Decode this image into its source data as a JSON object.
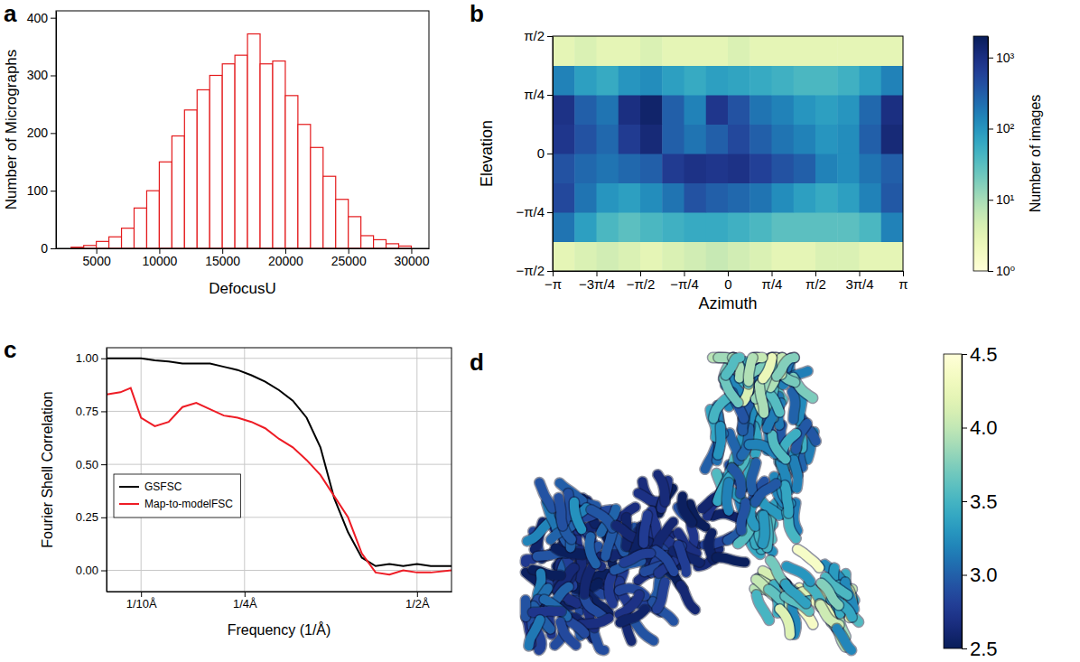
{
  "chart_data": [
    {
      "panel_label": "a",
      "type": "histogram",
      "x_label": "DefocusU",
      "y_label": "Number of Micrographs",
      "bins": [
        3000,
        4000,
        5000,
        6000,
        7000,
        8000,
        9000,
        10000,
        11000,
        12000,
        13000,
        14000,
        15000,
        16000,
        17000,
        18000,
        19000,
        20000,
        21000,
        22000,
        23000,
        24000,
        25000,
        26000,
        27000,
        28000,
        29000,
        30000
      ],
      "counts": [
        2,
        5,
        12,
        20,
        35,
        70,
        100,
        150,
        195,
        240,
        275,
        300,
        320,
        335,
        372,
        320,
        325,
        265,
        215,
        175,
        125,
        85,
        55,
        22,
        15,
        8,
        4
      ],
      "color": "#e41a1c",
      "xlim": [
        1800,
        31400
      ],
      "ylim": [
        0,
        412
      ],
      "xticks": [
        5000,
        10000,
        15000,
        20000,
        25000,
        30000
      ],
      "yticks": [
        0,
        100,
        200,
        300,
        400
      ]
    },
    {
      "panel_label": "b",
      "type": "heatmap",
      "x_label": "Azimuth",
      "y_label": "Elevation",
      "colorbar_label": "Number of images",
      "x_bins": [
        -3.14159,
        -2.74889,
        -2.35619,
        -1.9635,
        -1.5708,
        -1.1781,
        -0.7854,
        -0.3927,
        0,
        0.3927,
        0.7854,
        1.1781,
        1.5708,
        1.9635,
        2.35619,
        2.74889,
        3.14159
      ],
      "y_bins": [
        -1.5708,
        -1.1781,
        -0.7854,
        -0.3927,
        0,
        0.3927,
        0.7854,
        1.1781,
        1.5708
      ],
      "counts": [
        [
          3,
          4,
          5,
          4,
          3,
          4,
          5,
          6,
          5,
          4,
          3,
          3,
          4,
          4,
          3,
          3
        ],
        [
          200,
          80,
          40,
          30,
          40,
          50,
          60,
          60,
          50,
          40,
          30,
          30,
          30,
          30,
          40,
          150
        ],
        [
          500,
          200,
          100,
          80,
          120,
          200,
          400,
          300,
          250,
          200,
          120,
          80,
          60,
          80,
          150,
          350
        ],
        [
          400,
          250,
          200,
          250,
          300,
          700,
          900,
          800,
          900,
          600,
          400,
          300,
          150,
          120,
          200,
          300
        ],
        [
          800,
          400,
          250,
          700,
          1200,
          300,
          200,
          300,
          500,
          300,
          200,
          150,
          100,
          120,
          300,
          1200
        ],
        [
          900,
          300,
          200,
          1000,
          1500,
          300,
          150,
          800,
          400,
          200,
          150,
          100,
          80,
          100,
          250,
          1000
        ],
        [
          150,
          80,
          60,
          100,
          120,
          80,
          60,
          80,
          70,
          60,
          50,
          40,
          40,
          50,
          80,
          150
        ],
        [
          3,
          4,
          3,
          3,
          4,
          3,
          3,
          3,
          4,
          3,
          3,
          3,
          3,
          3,
          3,
          3
        ]
      ],
      "xlim": [
        -3.14159,
        3.14159
      ],
      "ylim": [
        -1.5708,
        1.5708
      ],
      "xticks": [
        {
          "value": -3.14159,
          "label": "−π"
        },
        {
          "value": -2.35619,
          "label": "−3π/4"
        },
        {
          "value": -1.5708,
          "label": "−π/2"
        },
        {
          "value": -0.7854,
          "label": "−π/4"
        },
        0,
        {
          "value": 0.7854,
          "label": "π/4"
        },
        {
          "value": 1.5708,
          "label": "π/2"
        },
        {
          "value": 2.35619,
          "label": "3π/4"
        },
        {
          "value": 3.14159,
          "label": "π"
        }
      ],
      "yticks": [
        {
          "value": -1.5708,
          "label": "−π/2"
        },
        {
          "value": -0.7854,
          "label": "−π/4"
        },
        0,
        {
          "value": 0.7854,
          "label": "π/4"
        },
        {
          "value": 1.5708,
          "label": "π/2"
        }
      ],
      "color_range": [
        1,
        2000
      ],
      "color_ticks": [
        {
          "value": 1,
          "label": "10⁰"
        },
        {
          "value": 10,
          "label": "10¹"
        },
        {
          "value": 100,
          "label": "10²"
        },
        {
          "value": 1000,
          "label": "10³"
        }
      ]
    },
    {
      "panel_label": "c",
      "type": "line",
      "x_label": "Frequency (1/Å)",
      "y_label": "Fourier Shell Correlation",
      "x": [
        0.05,
        0.07,
        0.085,
        0.1,
        0.12,
        0.14,
        0.16,
        0.18,
        0.2,
        0.22,
        0.24,
        0.26,
        0.28,
        0.3,
        0.32,
        0.34,
        0.36,
        0.38,
        0.4,
        0.42,
        0.44,
        0.46,
        0.48,
        0.5,
        0.52,
        0.55
      ],
      "series": [
        {
          "name": "GSFSC",
          "color": "#000000",
          "values": [
            1,
            1,
            1,
            1,
            0.99,
            0.985,
            0.975,
            0.975,
            0.975,
            0.96,
            0.945,
            0.92,
            0.89,
            0.85,
            0.8,
            0.72,
            0.58,
            0.34,
            0.18,
            0.06,
            0.02,
            0.03,
            0.02,
            0.03,
            0.02,
            0.02
          ]
        },
        {
          "name": "Map-to-modelFSC",
          "color": "#ee1c25",
          "values": [
            0.83,
            0.84,
            0.86,
            0.72,
            0.68,
            0.7,
            0.77,
            0.79,
            0.76,
            0.73,
            0.72,
            0.7,
            0.67,
            0.62,
            0.58,
            0.52,
            0.45,
            0.35,
            0.25,
            0.08,
            -0.01,
            -0.02,
            0,
            -0.01,
            -0.01,
            0
          ]
        }
      ],
      "xlim": [
        0.05,
        0.55
      ],
      "ylim": [
        -0.1,
        1.05
      ],
      "xticks": [
        {
          "value": 0.1,
          "label": "1/10Å"
        },
        {
          "value": 0.25,
          "label": "1/4Å"
        },
        {
          "value": 0.5,
          "label": "1/2Å"
        }
      ],
      "yticks": [
        {
          "value": 0,
          "label": "0.00"
        },
        0.25,
        {
          "value": 0.5,
          "label": "0.50"
        },
        0.75,
        {
          "value": 1,
          "label": "1.00"
        }
      ],
      "grid": true,
      "legend": "lower left"
    },
    {
      "panel_label": "d",
      "type": "image",
      "color_range": [
        2.5,
        4.5
      ],
      "color_ticks": [
        2.5,
        {
          "value": 3,
          "label": "3.0"
        },
        3.5,
        {
          "value": 4,
          "label": "4.0"
        },
        4.5
      ]
    }
  ]
}
